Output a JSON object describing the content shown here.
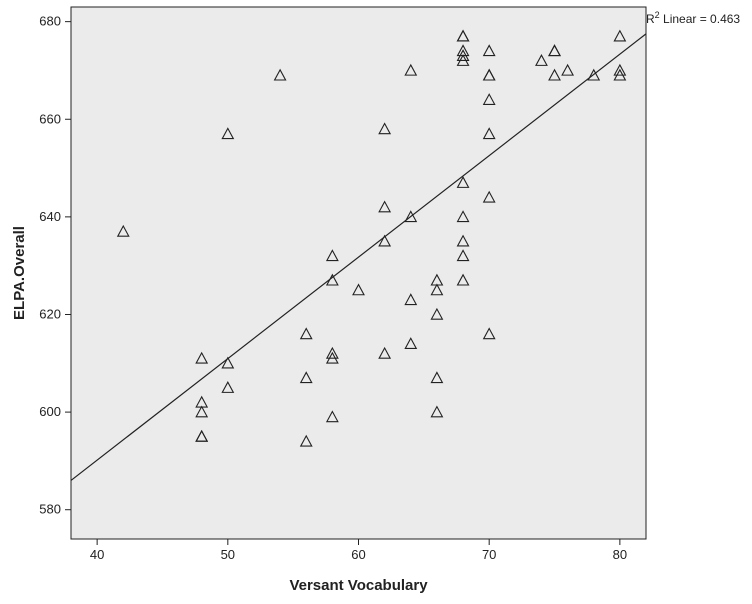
{
  "chart_data": {
    "type": "scatter",
    "title": "",
    "xlabel": "Versant Vocabulary",
    "ylabel": "ELPA.Overall",
    "xlim": [
      38,
      82
    ],
    "ylim": [
      574,
      683
    ],
    "x_ticks": [
      40,
      50,
      60,
      70,
      80
    ],
    "y_ticks": [
      580,
      600,
      620,
      640,
      660,
      680
    ],
    "grid": false,
    "plot_background": "#ebebeb",
    "marker": "open-triangle",
    "fit_line": {
      "type": "linear",
      "label": "R² Linear = 0.463",
      "label_prefix": "R",
      "label_superscript": "2",
      "label_suffix": " Linear = 0.463",
      "points": [
        [
          38,
          586
        ],
        [
          82,
          677.5
        ]
      ]
    },
    "series": [
      {
        "points": [
          [
            42,
            637
          ],
          [
            48,
            611
          ],
          [
            48,
            602
          ],
          [
            48,
            600
          ],
          [
            48,
            595
          ],
          [
            48,
            595
          ],
          [
            50,
            610
          ],
          [
            50,
            605
          ],
          [
            50,
            657
          ],
          [
            54,
            669
          ],
          [
            56,
            616
          ],
          [
            56,
            607
          ],
          [
            56,
            594
          ],
          [
            58,
            632
          ],
          [
            58,
            627
          ],
          [
            58,
            612
          ],
          [
            58,
            611
          ],
          [
            58,
            599
          ],
          [
            60,
            625
          ],
          [
            62,
            658
          ],
          [
            62,
            642
          ],
          [
            62,
            635
          ],
          [
            62,
            612
          ],
          [
            64,
            670
          ],
          [
            64,
            640
          ],
          [
            64,
            623
          ],
          [
            64,
            614
          ],
          [
            66,
            627
          ],
          [
            66,
            625
          ],
          [
            66,
            620
          ],
          [
            66,
            607
          ],
          [
            66,
            600
          ],
          [
            68,
            677
          ],
          [
            68,
            677
          ],
          [
            68,
            674
          ],
          [
            68,
            673
          ],
          [
            68,
            672
          ],
          [
            68,
            647
          ],
          [
            68,
            640
          ],
          [
            68,
            635
          ],
          [
            68,
            632
          ],
          [
            68,
            627
          ],
          [
            70,
            674
          ],
          [
            70,
            669
          ],
          [
            70,
            669
          ],
          [
            70,
            664
          ],
          [
            70,
            657
          ],
          [
            70,
            644
          ],
          [
            70,
            616
          ],
          [
            74,
            672
          ],
          [
            75,
            674
          ],
          [
            75,
            674
          ],
          [
            75,
            669
          ],
          [
            76,
            670
          ],
          [
            78,
            669
          ],
          [
            80,
            677
          ],
          [
            80,
            670
          ],
          [
            80,
            669
          ]
        ]
      }
    ]
  }
}
